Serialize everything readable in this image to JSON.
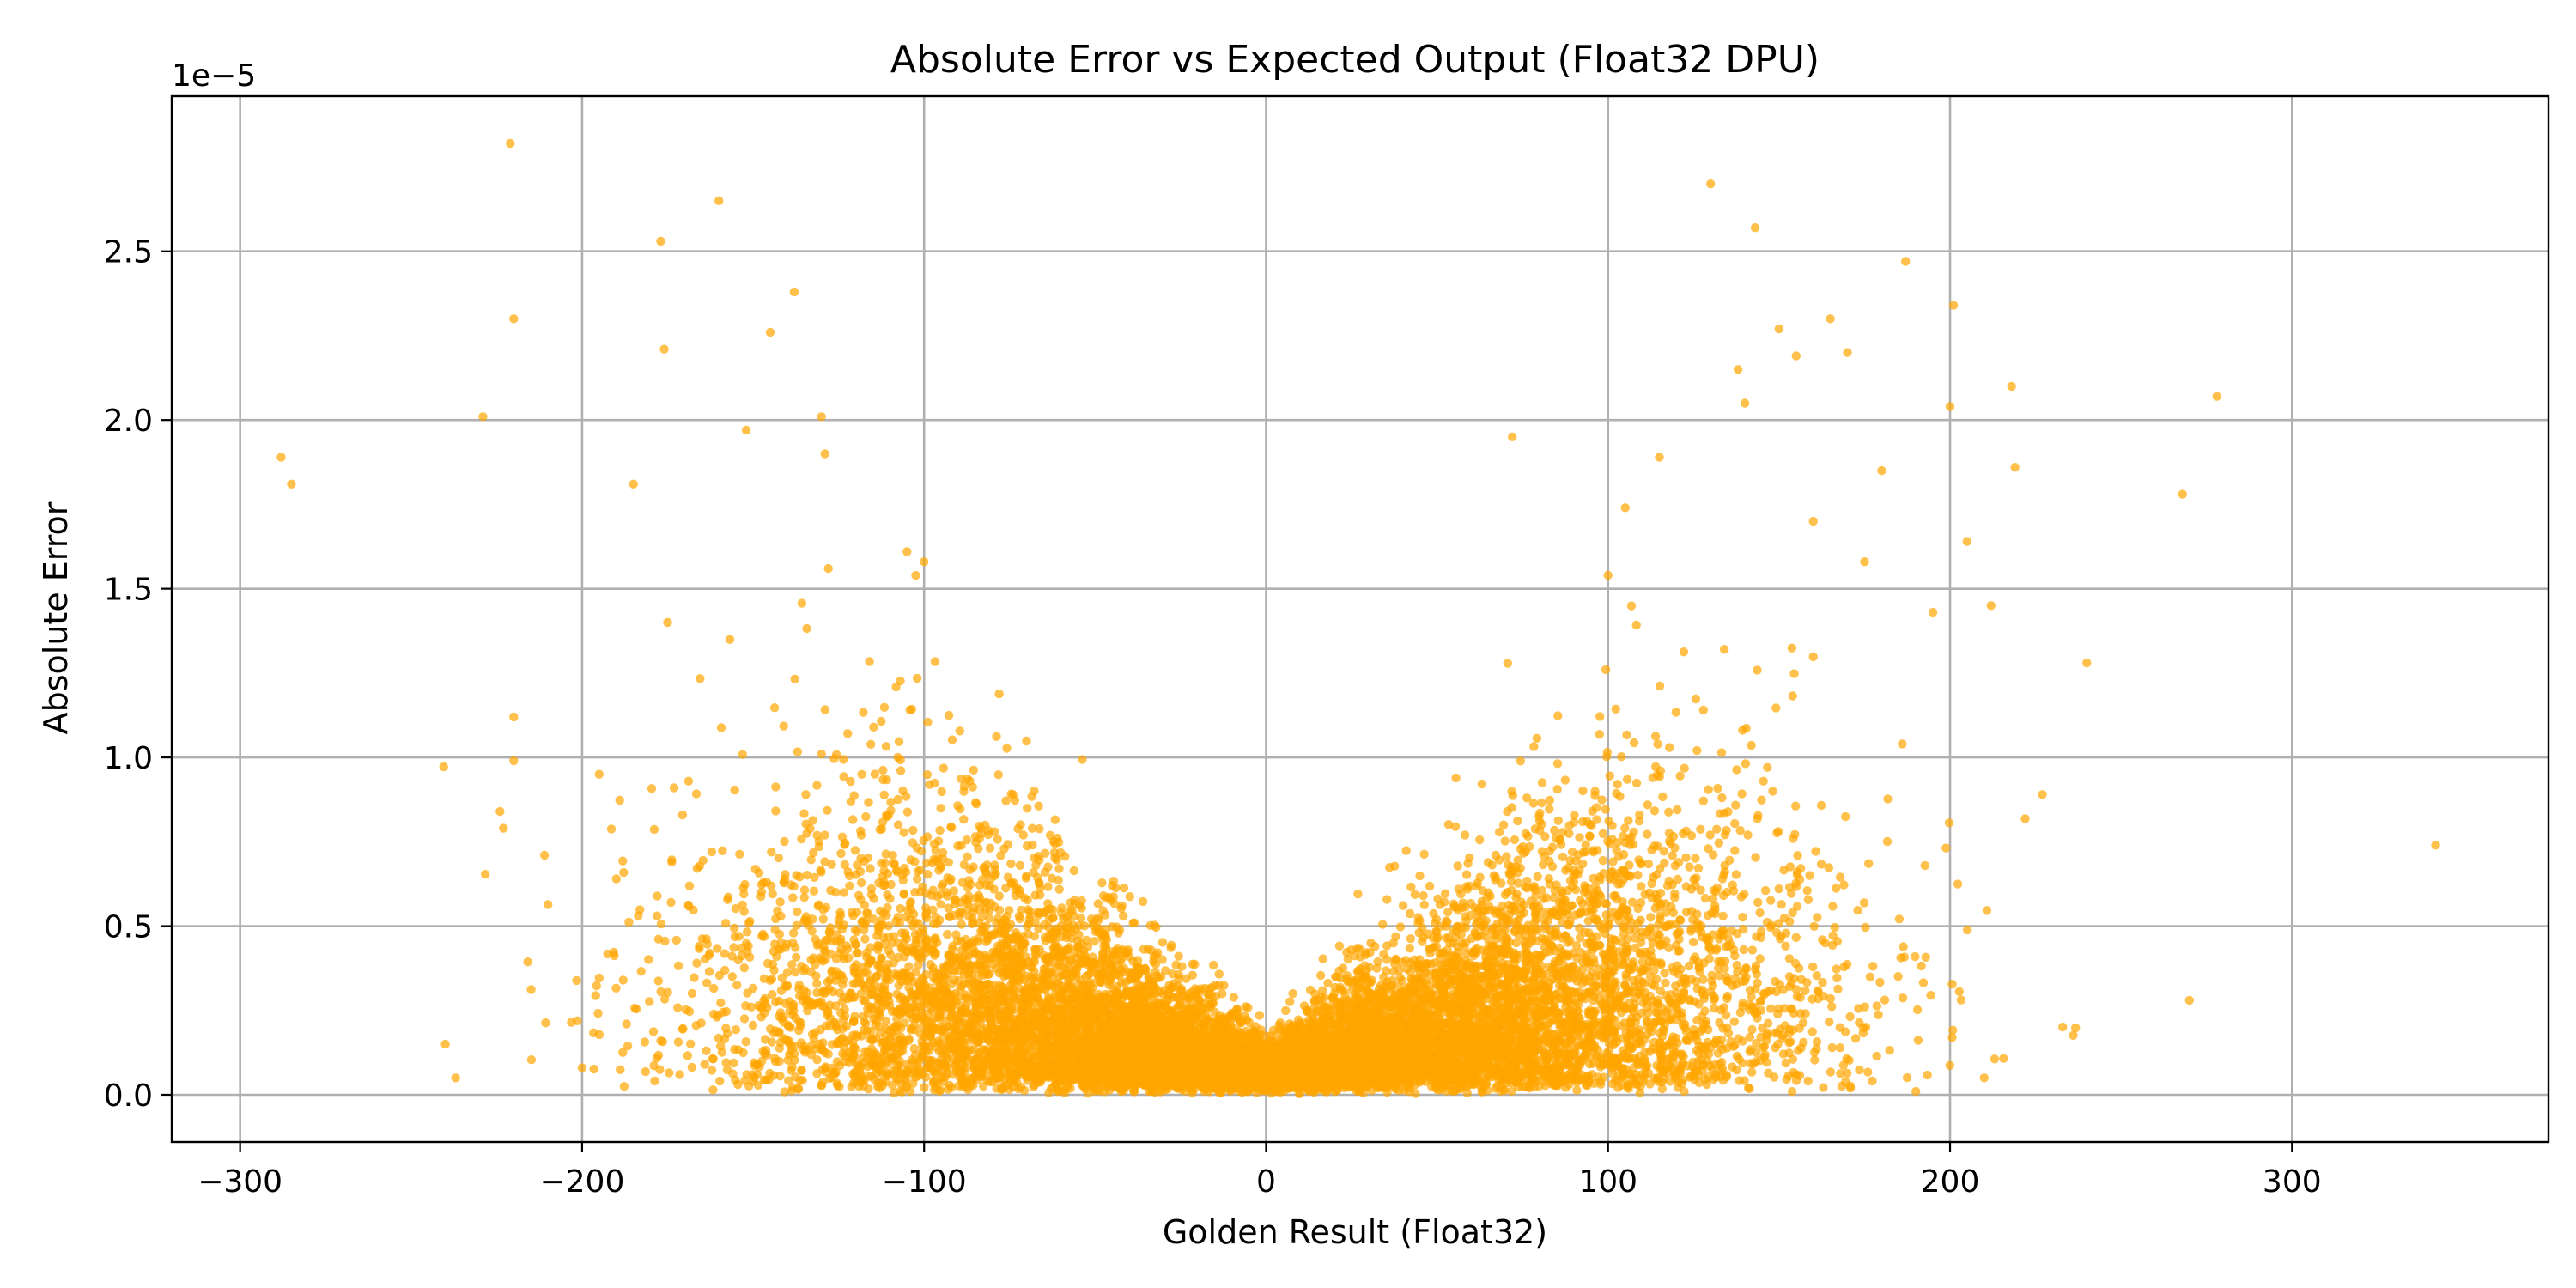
{
  "chart_data": {
    "type": "scatter",
    "title": "Absolute Error vs Expected Output (Float32 DPU)",
    "xlabel": "Golden Result (Float32)",
    "ylabel": "Absolute Error",
    "y_offset_label": "1e−5",
    "xlim": [
      -320,
      375
    ],
    "ylim": [
      -0.14,
      2.96
    ],
    "x_ticks": [
      -300,
      -200,
      -100,
      0,
      100,
      200,
      300
    ],
    "x_tick_labels": [
      "−300",
      "−200",
      "−100",
      "0",
      "100",
      "200",
      "300"
    ],
    "y_ticks": [
      0.0,
      0.5,
      1.0,
      1.5,
      2.0,
      2.5
    ],
    "y_tick_labels": [
      "0.0",
      "0.5",
      "1.0",
      "1.5",
      "2.0",
      "2.5"
    ],
    "grid": true,
    "marker_color": "#ffa500",
    "marker_alpha": 0.7,
    "approx_point_count": 12000,
    "x": [
      -288,
      -285,
      -240,
      -237,
      -229,
      -224,
      -223,
      -221,
      -220,
      -220,
      -220,
      -211,
      -200,
      -195,
      -190,
      -188,
      -187,
      -185,
      -177,
      -176,
      -175,
      -160,
      -152,
      -145,
      -138,
      -130,
      -129,
      -128,
      -105,
      -100,
      -95,
      -60,
      -40,
      -30,
      -15,
      -10,
      0,
      10,
      20,
      35,
      55,
      70,
      72,
      100,
      105,
      115,
      130,
      138,
      140,
      143,
      150,
      155,
      160,
      165,
      170,
      175,
      180,
      186,
      187,
      190,
      195,
      200,
      201,
      205,
      210,
      212,
      218,
      219,
      227,
      240,
      268,
      270,
      278,
      342
    ],
    "y": [
      1.89,
      1.81,
      0.15,
      0.05,
      2.01,
      0.84,
      0.79,
      2.82,
      2.3,
      1.12,
      0.99,
      0.71,
      0.08,
      0.95,
      0.64,
      0.34,
      0.21,
      1.81,
      2.53,
      2.21,
      1.4,
      2.65,
      1.97,
      2.26,
      2.38,
      2.01,
      1.9,
      1.56,
      1.61,
      1.58,
      0.05,
      0.5,
      0.3,
      0.12,
      0.05,
      0.2,
      0.1,
      0.15,
      0.3,
      0.08,
      0.4,
      0.05,
      1.95,
      1.54,
      1.74,
      1.89,
      2.7,
      2.15,
      2.05,
      2.57,
      2.27,
      2.19,
      1.7,
      2.3,
      2.2,
      1.58,
      1.85,
      1.04,
      2.47,
      0.01,
      1.43,
      2.04,
      2.34,
      1.64,
      0.05,
      1.45,
      2.1,
      1.86,
      0.89,
      1.28,
      1.78,
      0.28,
      2.07,
      0.74
    ],
    "cloud": {
      "clusters": [
        {
          "x_center": -25,
          "x_spread": 55,
          "y_mean": 0.25,
          "y_spread": 0.35,
          "share": 0.35
        },
        {
          "x_center": 25,
          "x_spread": 55,
          "y_mean": 0.25,
          "y_spread": 0.35,
          "share": 0.35
        },
        {
          "x_center": -85,
          "x_spread": 45,
          "y_mean": 0.6,
          "y_spread": 0.45,
          "share": 0.15
        },
        {
          "x_center": 85,
          "x_spread": 45,
          "y_mean": 0.6,
          "y_spread": 0.45,
          "share": 0.15
        }
      ]
    }
  }
}
